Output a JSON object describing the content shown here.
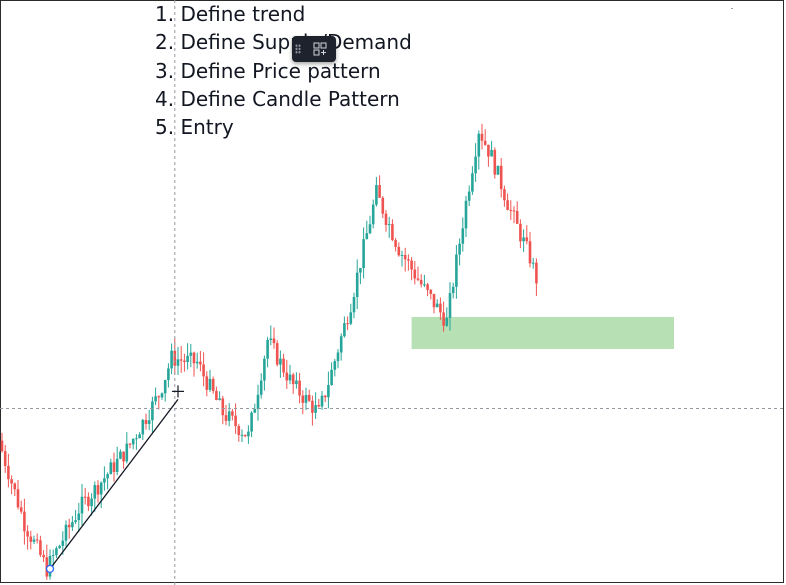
{
  "steps": [
    "1. Define trend",
    "2. Define Supply/Demand",
    "3. Define Price pattern",
    "4. Define Candle Pattern",
    "5. Entry"
  ],
  "colors": {
    "up": "#26a69a",
    "down": "#ef5350",
    "zone": "#b7e1b5",
    "crosshair": "#9598a1",
    "trendline": "#131722",
    "toolbar": "#1e222d"
  },
  "toolbar": {
    "icons": [
      "drag-handle-icon",
      "object-tree-icon"
    ]
  },
  "chart_data": {
    "type": "candlestick",
    "y_range": [
      0,
      100
    ],
    "crosshair": {
      "x_index": 54,
      "y": 37
    },
    "zone": {
      "x_start_index": 128,
      "x_end_index": 210,
      "y_low": 50,
      "y_high": 57
    },
    "trendline": {
      "from": {
        "x_index": 15,
        "y": 2
      },
      "to": {
        "x_index": 55,
        "y": 39
      }
    },
    "seed": 7
  }
}
